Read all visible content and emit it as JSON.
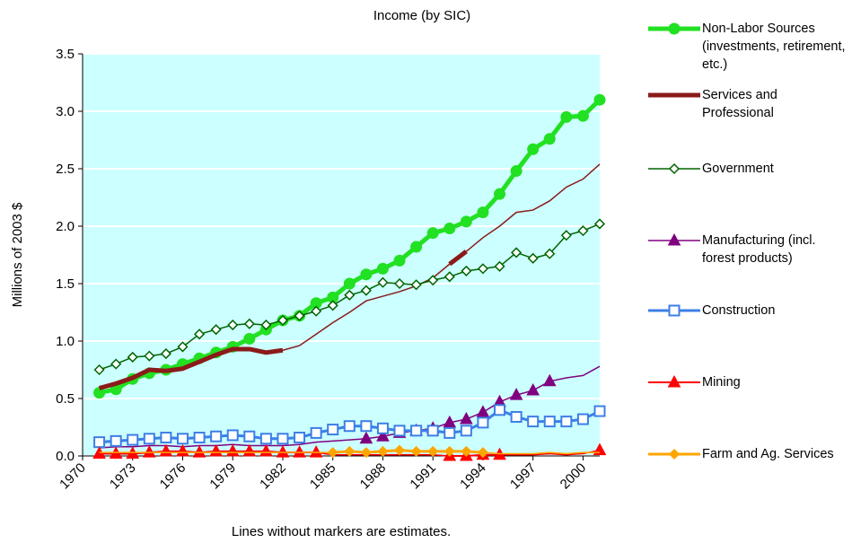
{
  "chart_data": {
    "type": "line",
    "title": "Income (by SIC)",
    "y_label": "Millions of 2003 $",
    "note": "Lines without markers are estimates.",
    "x": [
      1971,
      1972,
      1973,
      1974,
      1975,
      1976,
      1977,
      1978,
      1979,
      1980,
      1981,
      1982,
      1983,
      1984,
      1985,
      1986,
      1987,
      1988,
      1989,
      1990,
      1991,
      1992,
      1993,
      1994,
      1995,
      1996,
      1997,
      1998,
      1999,
      2000,
      2001
    ],
    "xlim": [
      1970,
      2001
    ],
    "xticks": [
      1970,
      1973,
      1976,
      1979,
      1982,
      1985,
      1988,
      1991,
      1994,
      1997,
      2000
    ],
    "ylim": [
      0,
      3.5
    ],
    "yticks": [
      {
        "value": 0,
        "label": "0.0"
      },
      0.5,
      {
        "value": 1,
        "label": "1.0"
      },
      1.5,
      {
        "value": 2,
        "label": "2.0"
      },
      2.5,
      {
        "value": 3,
        "label": "3.0"
      },
      3.5
    ],
    "grid": true,
    "plot_background": "#ccffff",
    "series": [
      {
        "name": "Non-Labor Sources (investments, retirement, etc.)",
        "color": "#22e022",
        "marker": "circle",
        "width": 5,
        "values": [
          0.55,
          0.58,
          0.67,
          0.72,
          0.75,
          0.8,
          0.85,
          0.9,
          0.95,
          1.02,
          1.1,
          1.18,
          1.22,
          1.33,
          1.38,
          1.5,
          1.58,
          1.63,
          1.7,
          1.82,
          1.94,
          1.98,
          2.04,
          2.12,
          2.28,
          2.48,
          2.67,
          2.76,
          2.95,
          2.96,
          3.1
        ]
      },
      {
        "name": "Services and Professional",
        "color": "#8b1a1a",
        "marker": "none",
        "width": 5,
        "values": [
          0.59,
          0.63,
          0.68,
          0.75,
          0.74,
          0.76,
          0.82,
          0.88,
          0.93,
          0.93,
          0.9,
          0.92,
          null,
          null,
          null,
          null,
          null,
          null,
          null,
          null,
          null,
          1.67,
          1.78,
          null,
          null,
          null,
          null,
          null,
          null,
          null,
          null
        ],
        "estimates": [
          null,
          null,
          null,
          null,
          null,
          null,
          null,
          null,
          null,
          null,
          null,
          0.92,
          0.96,
          1.06,
          1.16,
          1.25,
          1.35,
          1.39,
          1.43,
          1.48,
          1.55,
          1.67,
          1.78,
          1.9,
          2.0,
          2.12,
          2.14,
          2.22,
          2.34,
          2.41,
          2.54
        ]
      },
      {
        "name": "Government",
        "color": "#006400",
        "marker": "diamond-open",
        "width": 1.5,
        "values": [
          0.75,
          0.8,
          0.86,
          0.87,
          0.89,
          0.95,
          1.06,
          1.1,
          1.14,
          1.15,
          1.14,
          1.18,
          1.22,
          1.26,
          1.31,
          1.4,
          1.44,
          1.51,
          1.5,
          1.49,
          1.53,
          1.56,
          1.61,
          1.63,
          1.65,
          1.77,
          1.72,
          1.76,
          1.92,
          1.96,
          2.02
        ]
      },
      {
        "name": "Manufacturing (incl. forest products)",
        "color": "#800080",
        "marker": "triangle",
        "width": 1.5,
        "values": [
          null,
          null,
          null,
          null,
          null,
          null,
          null,
          null,
          null,
          null,
          null,
          null,
          null,
          null,
          null,
          null,
          0.15,
          0.17,
          0.2,
          0.22,
          0.24,
          0.29,
          0.32,
          0.38,
          0.47,
          0.53,
          0.57,
          0.65,
          null,
          null,
          null
        ],
        "estimates": [
          0.07,
          0.08,
          0.08,
          0.09,
          0.09,
          0.08,
          0.09,
          0.09,
          0.1,
          0.09,
          0.09,
          0.09,
          0.1,
          0.12,
          0.13,
          0.14,
          0.15,
          null,
          null,
          null,
          null,
          null,
          null,
          null,
          null,
          null,
          null,
          0.65,
          0.68,
          0.7,
          0.78
        ]
      },
      {
        "name": "Construction",
        "color": "#3d7fe6",
        "marker": "square-open",
        "width": 3,
        "values": [
          0.12,
          0.13,
          0.14,
          0.15,
          0.16,
          0.15,
          0.16,
          0.17,
          0.18,
          0.17,
          0.15,
          0.15,
          0.16,
          0.2,
          0.23,
          0.26,
          0.26,
          0.24,
          0.22,
          0.22,
          0.22,
          0.2,
          0.22,
          0.29,
          0.4,
          0.34,
          0.3,
          0.3,
          0.3,
          0.32,
          0.39
        ]
      },
      {
        "name": "Mining",
        "color": "#ff0000",
        "marker": "triangle",
        "width": 2,
        "values": [
          0.02,
          0.02,
          0.02,
          0.03,
          0.04,
          0.04,
          0.03,
          0.04,
          0.04,
          0.04,
          0.04,
          0.03,
          0.03,
          0.03,
          null,
          null,
          null,
          null,
          null,
          null,
          null,
          0.0,
          0.0,
          0.01,
          0.01,
          null,
          null,
          null,
          null,
          null,
          0.05
        ],
        "estimates": [
          null,
          null,
          null,
          null,
          null,
          null,
          null,
          null,
          null,
          null,
          null,
          null,
          null,
          0.03,
          0.01,
          0.01,
          0.01,
          0.01,
          0.01,
          0.01,
          0.01,
          0.0,
          null,
          null,
          0.01,
          0.01,
          0.01,
          0.02,
          0.01,
          0.02,
          0.05
        ]
      },
      {
        "name": "Farm and Ag. Services",
        "color": "#ffa500",
        "marker": "diamond",
        "width": 3,
        "values": [
          null,
          null,
          null,
          null,
          null,
          null,
          null,
          null,
          null,
          null,
          null,
          null,
          null,
          null,
          0.03,
          0.04,
          0.03,
          0.04,
          0.05,
          0.04,
          0.04,
          0.04,
          0.04,
          0.03,
          null,
          null,
          null,
          null,
          null,
          null,
          null
        ],
        "estimates": [
          0.03,
          0.03,
          0.03,
          0.03,
          0.03,
          0.03,
          0.03,
          0.03,
          0.03,
          0.03,
          0.03,
          0.03,
          0.03,
          0.03,
          0.03,
          null,
          null,
          null,
          null,
          null,
          null,
          null,
          null,
          0.03,
          0.02,
          0.02,
          0.02,
          0.03,
          0.02,
          0.03,
          0.03
        ]
      }
    ]
  }
}
